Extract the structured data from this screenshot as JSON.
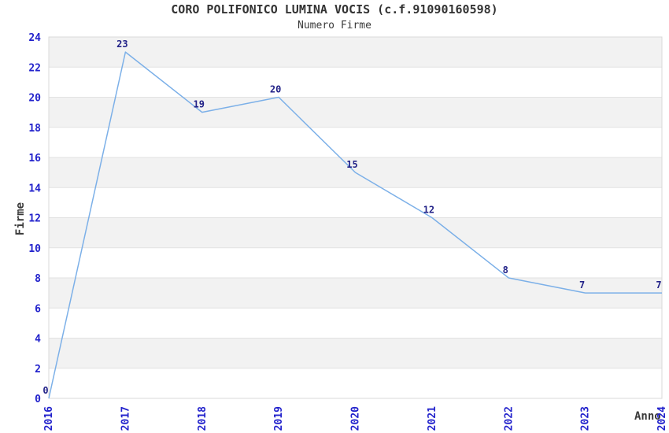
{
  "chart_data": {
    "type": "line",
    "title": "CORO POLIFONICO LUMINA VOCIS (c.f.91090160598)",
    "subtitle": "Numero Firme",
    "xlabel": "Anno",
    "ylabel": "Firme",
    "x": [
      2016,
      2017,
      2018,
      2019,
      2020,
      2021,
      2022,
      2023,
      2024
    ],
    "series": [
      {
        "name": "Numero Firme",
        "values": [
          0,
          23,
          19,
          20,
          15,
          12,
          8,
          7,
          7
        ]
      }
    ],
    "data_labels": [
      "0",
      "23",
      "19",
      "20",
      "15",
      "12",
      "8",
      "7",
      "7"
    ],
    "ylim": [
      0,
      24
    ],
    "yticks": [
      0,
      2,
      4,
      6,
      8,
      10,
      12,
      14,
      16,
      18,
      20,
      22,
      24
    ],
    "ytick_step": 2,
    "grid": "alternating-horizontal-bands",
    "legend": "none",
    "colors": {
      "line": "#7cb0e8",
      "band": "#f2f2f2",
      "grid_line": "#e2e2e2",
      "plot_border": "#d9d9d9",
      "tick_label": "#2222cc",
      "data_label": "#222288",
      "axis_title": "#3a3a3a",
      "title": "#333333"
    }
  }
}
